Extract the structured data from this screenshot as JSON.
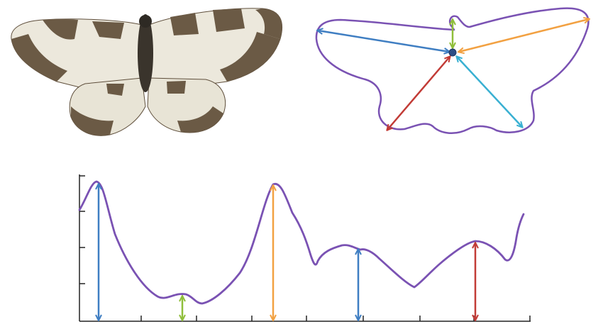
{
  "colors": {
    "outline": "#7a52b3",
    "arrow_blue": "#3f7ec2",
    "arrow_green": "#8fbe3a",
    "arrow_orange": "#f2a142",
    "arrow_red": "#c23b36",
    "arrow_cyan": "#39b0d2",
    "center_dot": "#2c4e86",
    "axis": "#222222",
    "wing_light": "#ece8dc",
    "wing_dark": "#6b5a45",
    "body_dark": "#3a342c"
  },
  "icons": {
    "photo": "moth-photo",
    "outline": "wing-outline-diagram",
    "profile": "radial-distance-profile"
  }
}
